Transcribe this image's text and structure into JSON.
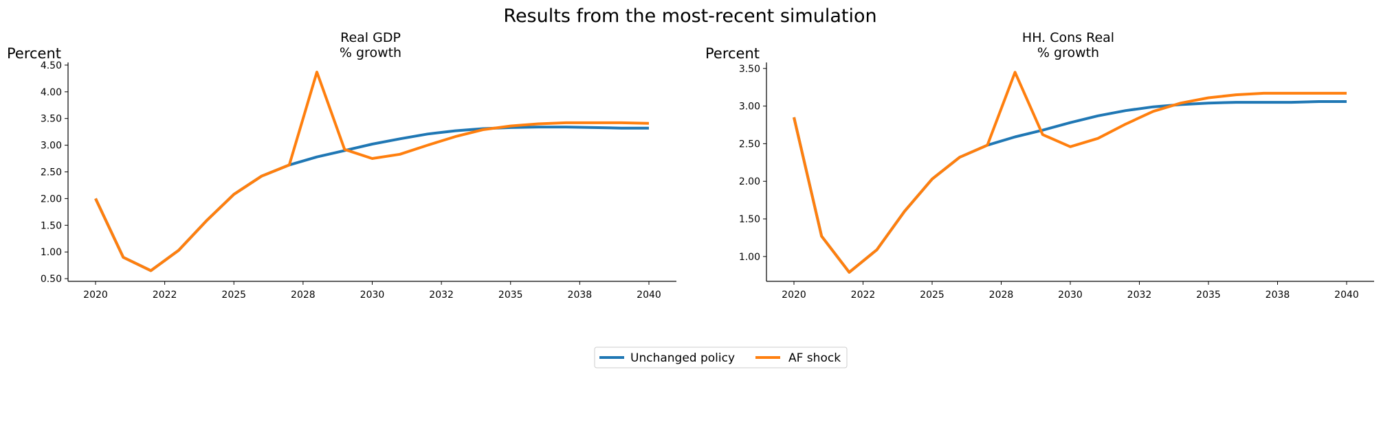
{
  "suptitle": "Results from the most-recent simulation",
  "legend": {
    "entries": [
      "Unchanged policy",
      "AF shock"
    ]
  },
  "colors": {
    "unchanged": "#1f77b4",
    "shock": "#ff7f0e"
  },
  "chart_data": [
    {
      "type": "line",
      "title_line1": "Real GDP",
      "title_line2": "% growth",
      "ylabel": "Percent",
      "x": [
        2020,
        2021,
        2022,
        2023,
        2024,
        2025,
        2026,
        2027,
        2028,
        2029,
        2030,
        2031,
        2032,
        2033,
        2034,
        2035,
        2036,
        2037,
        2038,
        2039,
        2040
      ],
      "xticks": [
        "2020",
        "2022",
        "2025",
        "2028",
        "2030",
        "2032",
        "2035",
        "2038",
        "2040"
      ],
      "yticks": [
        "0.50",
        "1.00",
        "1.50",
        "2.00",
        "2.50",
        "3.00",
        "3.50",
        "4.00",
        "4.50"
      ],
      "ylim": [
        0.45,
        4.55
      ],
      "series": [
        {
          "name": "Unchanged policy",
          "values": [
            2.0,
            0.9,
            0.65,
            1.03,
            1.58,
            2.08,
            2.42,
            2.63,
            2.78,
            2.9,
            3.02,
            3.12,
            3.21,
            3.27,
            3.31,
            3.33,
            3.34,
            3.34,
            3.33,
            3.32,
            3.32
          ]
        },
        {
          "name": "AF shock",
          "values": [
            2.0,
            0.9,
            0.65,
            1.03,
            1.58,
            2.08,
            2.42,
            2.63,
            4.37,
            2.92,
            2.75,
            2.83,
            3.0,
            3.16,
            3.29,
            3.36,
            3.4,
            3.42,
            3.42,
            3.42,
            3.41
          ]
        }
      ]
    },
    {
      "type": "line",
      "title_line1": "HH. Cons Real",
      "title_line2": "% growth",
      "ylabel": "Percent",
      "x": [
        2020,
        2021,
        2022,
        2023,
        2024,
        2025,
        2026,
        2027,
        2028,
        2029,
        2030,
        2031,
        2032,
        2033,
        2034,
        2035,
        2036,
        2037,
        2038,
        2039,
        2040
      ],
      "xticks": [
        "2020",
        "2022",
        "2025",
        "2028",
        "2030",
        "2032",
        "2035",
        "2038",
        "2040"
      ],
      "yticks": [
        "1.00",
        "1.50",
        "2.00",
        "2.50",
        "3.00",
        "3.50"
      ],
      "ylim": [
        0.67,
        3.58
      ],
      "series": [
        {
          "name": "Unchanged policy",
          "values": [
            2.85,
            1.27,
            0.79,
            1.09,
            1.6,
            2.03,
            2.32,
            2.48,
            2.59,
            2.68,
            2.78,
            2.87,
            2.94,
            2.99,
            3.02,
            3.04,
            3.05,
            3.05,
            3.05,
            3.06,
            3.06
          ]
        },
        {
          "name": "AF shock",
          "values": [
            2.85,
            1.27,
            0.79,
            1.09,
            1.6,
            2.03,
            2.32,
            2.48,
            3.45,
            2.62,
            2.46,
            2.57,
            2.76,
            2.93,
            3.04,
            3.11,
            3.15,
            3.17,
            3.17,
            3.17,
            3.17
          ]
        }
      ]
    }
  ]
}
